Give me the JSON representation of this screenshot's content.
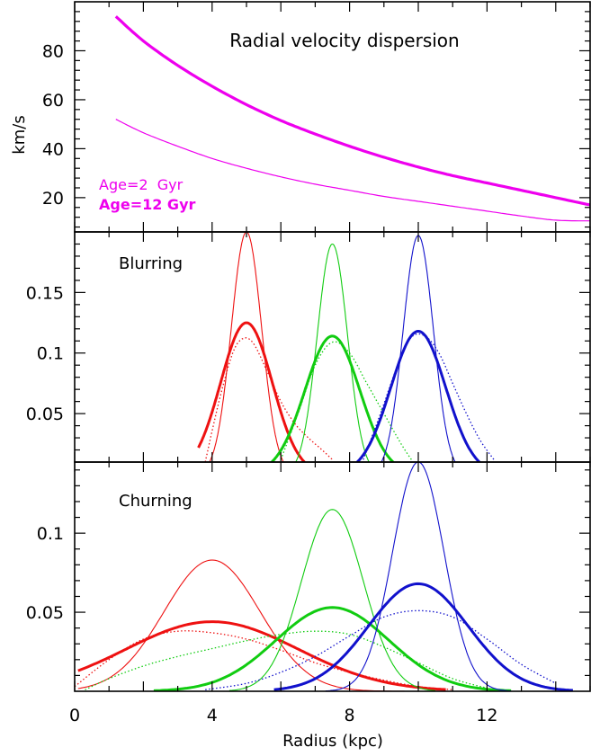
{
  "xlabel": "Radius (kpc)",
  "x_ticks": [
    "0",
    "4",
    "8",
    "12"
  ],
  "colors": {
    "magenta": "#ee00ee",
    "red": "#ee1111",
    "green": "#11cc11",
    "blue": "#1111cc",
    "axis": "#000000"
  },
  "chart_data": [
    {
      "type": "line",
      "title": "Radial velocity dispersion",
      "ylabel": "km/s",
      "xlim": [
        0,
        15
      ],
      "ylim": [
        6,
        100
      ],
      "y_ticks": [
        20,
        40,
        60,
        80
      ],
      "y_tick_labels": [
        "20",
        "40",
        "60",
        "80"
      ],
      "legend": [
        "Age=2  Gyr",
        "Age=12 Gyr"
      ],
      "legend_position": "bottom-left",
      "series": [
        {
          "name": "Age=2  Gyr",
          "style": "thin",
          "x": [
            1.2,
            2,
            3,
            4,
            5,
            6,
            7,
            8,
            9,
            10,
            11,
            12,
            13,
            14,
            15
          ],
          "y": [
            52,
            46.5,
            41,
            36,
            32,
            28.5,
            25.5,
            23,
            20.5,
            18.5,
            16.5,
            14.5,
            12.5,
            10.8,
            10.5
          ]
        },
        {
          "name": "Age=12 Gyr",
          "style": "thick",
          "x": [
            1.2,
            2,
            3,
            4,
            5,
            6,
            7,
            8,
            9,
            10,
            11,
            12,
            13,
            14,
            15
          ],
          "y": [
            94,
            84,
            74,
            65.5,
            58,
            51.5,
            46,
            41,
            36.5,
            32.5,
            29,
            26,
            23,
            20,
            17
          ]
        }
      ]
    },
    {
      "type": "line",
      "title": "Blurring",
      "xlim": [
        0,
        15
      ],
      "ylim": [
        0.01,
        0.2
      ],
      "y_ticks": [
        0.05,
        0.1,
        0.15
      ],
      "y_tick_labels": [
        "0.05",
        "0.1",
        "0.15"
      ],
      "groups": [
        {
          "color": "red",
          "center": 5,
          "thin": {
            "peak": 0.2,
            "sigma": 0.44,
            "xmin": 3.9,
            "xmax": 6.1
          },
          "thick": {
            "peak": 0.125,
            "sigma": 0.75,
            "xmin": 3.6,
            "xmax": 7.1
          },
          "dotted": {
            "x": [
              3.8,
              4.2,
              4.6,
              4.9,
              5.2,
              5.6,
              6.0,
              6.4,
              6.8,
              7.2,
              7.5
            ],
            "y": [
              0.01,
              0.06,
              0.1,
              0.112,
              0.108,
              0.085,
              0.06,
              0.042,
              0.03,
              0.02,
              0.012
            ]
          }
        },
        {
          "color": "green",
          "center": 7.5,
          "thin": {
            "peak": 0.19,
            "sigma": 0.44,
            "xmin": 6.4,
            "xmax": 8.6
          },
          "thick": {
            "peak": 0.114,
            "sigma": 0.8,
            "xmin": 5.7,
            "xmax": 9.6
          },
          "dotted": {
            "x": [
              6.0,
              6.5,
              7.0,
              7.5,
              8.0,
              8.5,
              9.0,
              9.5,
              9.8
            ],
            "y": [
              0.012,
              0.05,
              0.09,
              0.109,
              0.1,
              0.075,
              0.05,
              0.025,
              0.012
            ]
          }
        },
        {
          "color": "blue",
          "center": 10,
          "thin": {
            "peak": 0.197,
            "sigma": 0.44,
            "xmin": 8.9,
            "xmax": 11.1
          },
          "thick": {
            "peak": 0.118,
            "sigma": 0.8,
            "xmin": 8.2,
            "xmax": 12.0
          },
          "dotted": {
            "x": [
              8.4,
              8.9,
              9.4,
              9.8,
              10.2,
              10.6,
              11.0,
              11.4,
              11.8,
              12.2
            ],
            "y": [
              0.012,
              0.05,
              0.09,
              0.113,
              0.114,
              0.1,
              0.075,
              0.05,
              0.028,
              0.012
            ]
          }
        }
      ]
    },
    {
      "type": "line",
      "title": "Churning",
      "xlim": [
        0,
        15
      ],
      "ylim": [
        0,
        0.145
      ],
      "y_ticks": [
        0.05,
        0.1
      ],
      "y_tick_labels": [
        "0.05",
        "0.1"
      ],
      "groups": [
        {
          "color": "red",
          "center": 4,
          "thin": {
            "peak": 0.083,
            "sigma": 1.4,
            "xmin": 0.1,
            "xmax": 10.4
          },
          "thick": {
            "peak": 0.044,
            "sigma": 2.5,
            "xmin": 0.1,
            "xmax": 10.8
          },
          "dotted": {
            "x": [
              0,
              1,
              2,
              3,
              4,
              5,
              6,
              7,
              8,
              9,
              10,
              11
            ],
            "y": [
              0.003,
              0.02,
              0.033,
              0.038,
              0.037,
              0.033,
              0.026,
              0.018,
              0.012,
              0.007,
              0.003,
              0.001
            ]
          }
        },
        {
          "color": "green",
          "center": 7.5,
          "thin": {
            "peak": 0.115,
            "sigma": 0.9,
            "xmin": 4.5,
            "xmax": 10.5
          },
          "thick": {
            "peak": 0.053,
            "sigma": 1.65,
            "xmin": 2.3,
            "xmax": 12.7
          },
          "dotted": {
            "x": [
              0.3,
              1,
              2,
              3,
              4,
              5,
              6,
              7,
              8,
              9,
              10,
              11,
              12
            ],
            "y": [
              0.001,
              0.008,
              0.016,
              0.022,
              0.027,
              0.032,
              0.036,
              0.038,
              0.036,
              0.028,
              0.018,
              0.008,
              0.002
            ]
          }
        },
        {
          "color": "blue",
          "center": 10,
          "thin": {
            "peak": 0.145,
            "sigma": 0.75,
            "xmin": 7.3,
            "xmax": 12.7
          },
          "thick": {
            "peak": 0.068,
            "sigma": 1.45,
            "xmin": 5.8,
            "xmax": 14.5
          },
          "dotted": {
            "x": [
              3.8,
              5,
              6,
              7,
              8,
              9,
              10,
              11,
              12,
              13,
              14
            ],
            "y": [
              0.001,
              0.005,
              0.012,
              0.022,
              0.035,
              0.047,
              0.051,
              0.047,
              0.033,
              0.017,
              0.005
            ]
          }
        }
      ]
    }
  ]
}
